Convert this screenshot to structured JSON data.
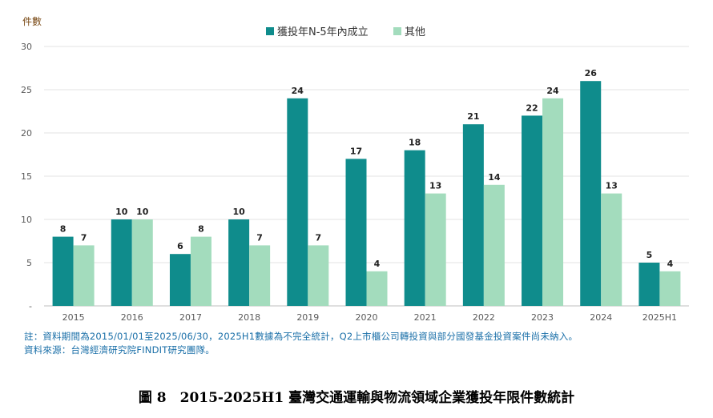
{
  "chart_data": {
    "type": "bar",
    "ylabel": "件數",
    "ylim": [
      0,
      30
    ],
    "yticks": [
      "-",
      "5",
      "10",
      "15",
      "20",
      "25",
      "30"
    ],
    "categories": [
      "2015",
      "2016",
      "2017",
      "2018",
      "2019",
      "2020",
      "2021",
      "2022",
      "2023",
      "2024",
      "2025H1"
    ],
    "series": [
      {
        "name": "獲投年N-5年內成立",
        "color": "#0f8c8c",
        "values": [
          8,
          10,
          6,
          10,
          24,
          17,
          18,
          21,
          22,
          26,
          5
        ]
      },
      {
        "name": "其他",
        "color": "#a3dcbd",
        "values": [
          7,
          10,
          8,
          7,
          7,
          4,
          13,
          14,
          24,
          13,
          4
        ]
      }
    ],
    "legend_position": "top",
    "grid": true
  },
  "notes": {
    "line1": "註：資料期間為2015/01/01至2025/06/30，2025H1數據為不完全統計，Q2上市櫃公司轉投資與部分國發基金投資案件尚未納入。",
    "line2": "資料來源：台灣經濟研究院FINDIT研究團隊。"
  },
  "caption": "圖 8　2015-2025H1 臺灣交通運輸與物流領域企業獲投年限件數統計"
}
